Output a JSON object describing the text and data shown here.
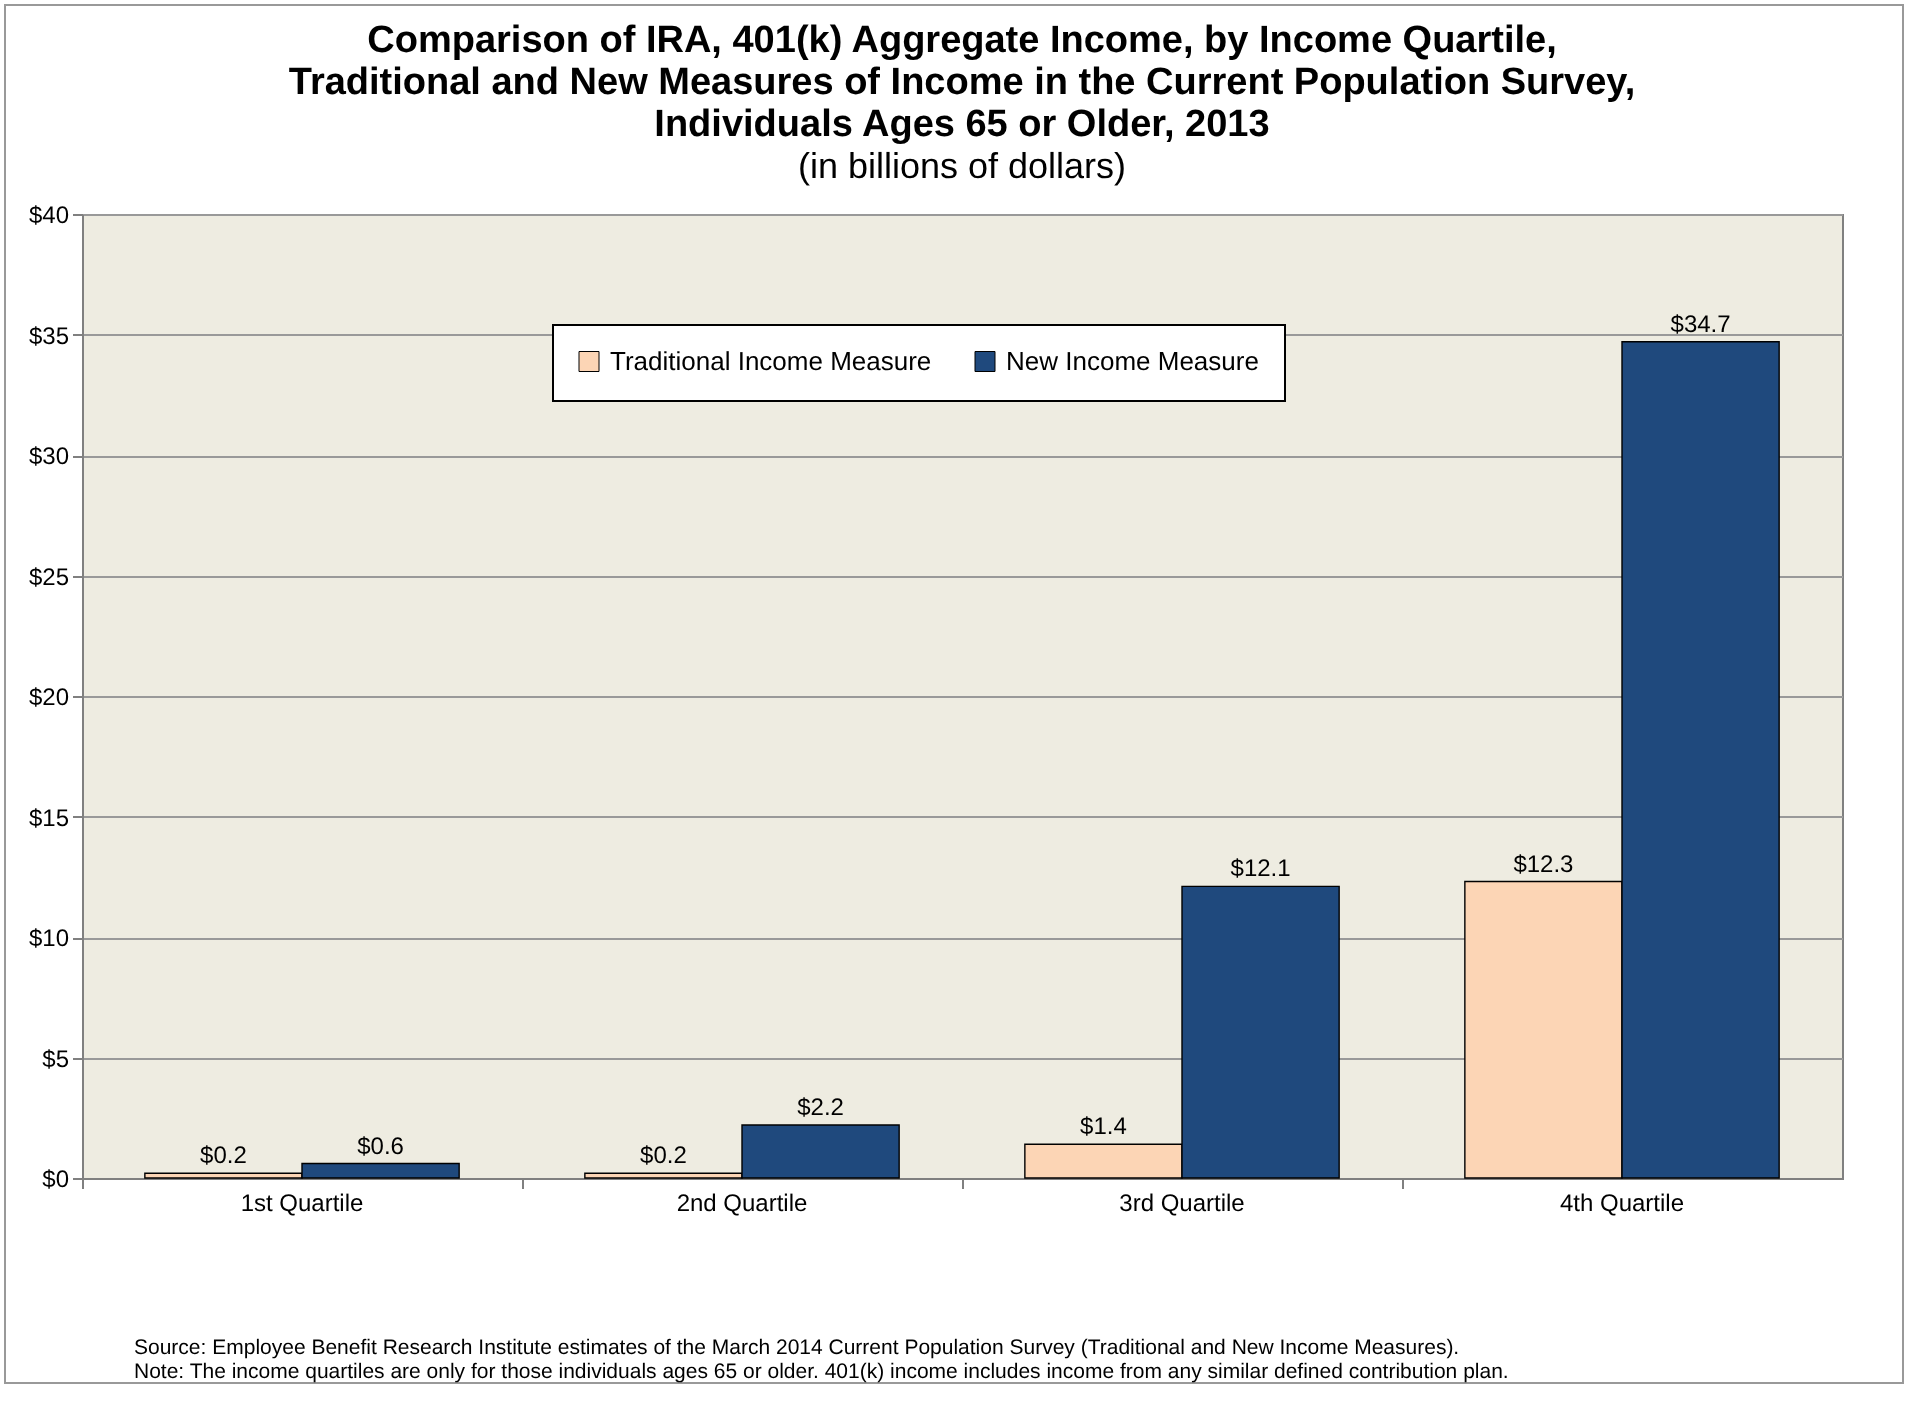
{
  "chart_data": {
    "type": "bar",
    "title": "Comparison of IRA, 401(k) Aggregate Income, by Income Quartile,\nTraditional and New Measures of Income in the Current Population Survey,\nIndividuals Ages 65 or Older, 2013",
    "subtitle": "(in billions of dollars)",
    "categories": [
      "1st Quartile",
      "2nd Quartile",
      "3rd Quartile",
      "4th Quartile"
    ],
    "series": [
      {
        "name": "Traditional Income Measure",
        "color": "#fcd5b5",
        "values": [
          0.2,
          0.2,
          1.4,
          12.3
        ],
        "value_labels": [
          "$0.2",
          "$0.2",
          "$1.4",
          "$12.3"
        ]
      },
      {
        "name": "New Income Measure",
        "color": "#1f497d",
        "values": [
          0.6,
          2.2,
          12.1,
          34.7
        ],
        "value_labels": [
          "$0.6",
          "$2.2",
          "$12.1",
          "$34.7"
        ]
      }
    ],
    "ylim": [
      0,
      40
    ],
    "yticks": [
      {
        "value": 0,
        "label": "$0"
      },
      {
        "value": 5,
        "label": "$5"
      },
      {
        "value": 10,
        "label": "$10"
      },
      {
        "value": 15,
        "label": "$15"
      },
      {
        "value": 20,
        "label": "$20"
      },
      {
        "value": 25,
        "label": "$25"
      },
      {
        "value": 30,
        "label": "$30"
      },
      {
        "value": 35,
        "label": "$35"
      },
      {
        "value": 40,
        "label": "$40"
      }
    ],
    "grid": "y",
    "legend": "top",
    "annotations": [
      "Source: Employee Benefit Research Institute estimates of the March 2014 Current Population Survey (Traditional and New Income Measures).",
      "Note: The income quartiles are only for those individuals ages 65 or older. 401(k) income includes income from any similar defined contribution plan."
    ]
  }
}
